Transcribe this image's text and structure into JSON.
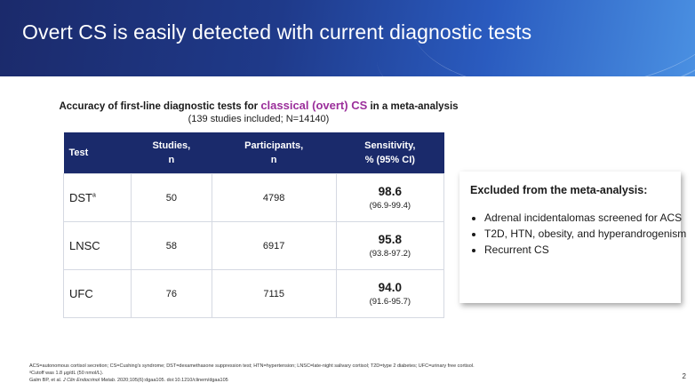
{
  "slide": {
    "title": "Overt CS is easily detected with current diagnostic tests",
    "subtitle_prefix": "Accuracy of first-line diagnostic tests for ",
    "subtitle_highlight": "classical (overt) CS",
    "subtitle_suffix": " in a meta-analysis",
    "subline": "(139 studies included; N=14140)",
    "page_number": "2"
  },
  "table": {
    "headers": {
      "test": "Test",
      "studies_line1": "Studies,",
      "studies_line2": "n",
      "participants_line1": "Participants,",
      "participants_line2": "n",
      "sensitivity_line1": "Sensitivity,",
      "sensitivity_line2": "% (95% CI)"
    },
    "rows": [
      {
        "test": "DST",
        "sup": "a",
        "studies": "50",
        "participants": "4798",
        "sensitivity": "98.6",
        "ci": "(96.9-99.4)"
      },
      {
        "test": "LNSC",
        "sup": "",
        "studies": "58",
        "participants": "6917",
        "sensitivity": "95.8",
        "ci": "(93.8-97.2)"
      },
      {
        "test": "UFC",
        "sup": "",
        "studies": "76",
        "participants": "7115",
        "sensitivity": "94.0",
        "ci": "(91.6-95.7)"
      }
    ]
  },
  "callout": {
    "heading": "Excluded from the meta-analysis:",
    "items": [
      "Adrenal incidentalomas screened for ACS",
      "T2D, HTN, obesity, and hyperandrogenism",
      "Recurrent CS"
    ]
  },
  "footnotes": {
    "abbreviations": "ACS=autonomous cortisol secretion; CS=Cushing's syndrome; DST=dexamethasone suppression test; HTN=hypertension; LNSC=late-night salivary cortisol; T2D=type 2 diabetes; UFC=urinary free cortisol.",
    "cutoff": "ᵃCutoff was 1.8 μg/dL (50 nmol/L).",
    "citation_authors": "Galm BP, et al. ",
    "citation_journal": "J Clin Endocrinol Metab",
    "citation_rest": ". 2020;105(6):dgaa105. doi:10.1210/clinem/dgaa105"
  },
  "colors": {
    "banner": "#1b2a6b",
    "table_header": "#1a2a6b",
    "highlight": "#9b2f9b"
  }
}
